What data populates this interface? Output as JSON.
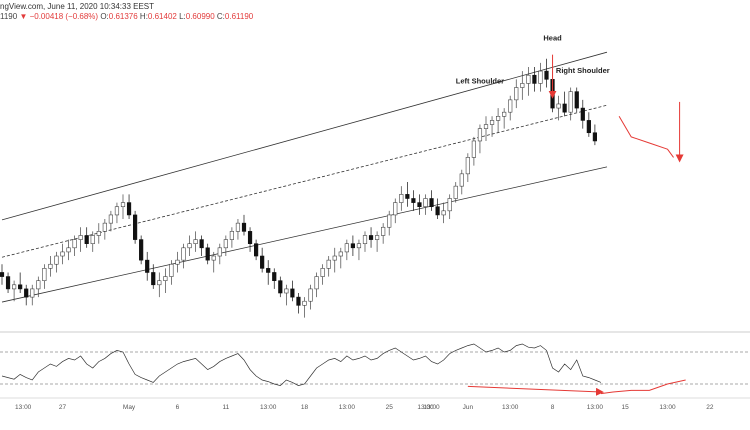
{
  "header": {
    "source": "ngView.com, June 11, 2020 10:34:33 EEST",
    "price": "1190",
    "change": "▼ −0.00418 (−0.68%)",
    "o_label": "O:",
    "o_value": "0.61376",
    "h_label": "H:",
    "h_value": "0.61402",
    "l_label": "L:",
    "l_value": "0.60990",
    "c_label": "C:",
    "c_value": "0.61190"
  },
  "colors": {
    "up": "#444444",
    "down": "#111111",
    "channel": "#333333",
    "projection": "#e53935",
    "rsi": "#333333"
  },
  "chart_data": {
    "type": "candlestick",
    "candles": [
      [
        0.633,
        0.635,
        0.63,
        0.632
      ],
      [
        0.632,
        0.633,
        0.628,
        0.629
      ],
      [
        0.629,
        0.631,
        0.626,
        0.63
      ],
      [
        0.63,
        0.633,
        0.628,
        0.629
      ],
      [
        0.629,
        0.63,
        0.625,
        0.627
      ],
      [
        0.627,
        0.63,
        0.625,
        0.629
      ],
      [
        0.629,
        0.632,
        0.627,
        0.631
      ],
      [
        0.631,
        0.635,
        0.629,
        0.634
      ],
      [
        0.634,
        0.637,
        0.632,
        0.635
      ],
      [
        0.635,
        0.638,
        0.633,
        0.637
      ],
      [
        0.637,
        0.64,
        0.635,
        0.638
      ],
      [
        0.638,
        0.641,
        0.636,
        0.639
      ],
      [
        0.639,
        0.642,
        0.637,
        0.641
      ],
      [
        0.641,
        0.644,
        0.638,
        0.642
      ],
      [
        0.642,
        0.644,
        0.639,
        0.64
      ],
      [
        0.64,
        0.643,
        0.638,
        0.642
      ],
      [
        0.642,
        0.645,
        0.64,
        0.643
      ],
      [
        0.643,
        0.646,
        0.641,
        0.645
      ],
      [
        0.645,
        0.648,
        0.643,
        0.647
      ],
      [
        0.647,
        0.65,
        0.645,
        0.649
      ],
      [
        0.649,
        0.652,
        0.646,
        0.65
      ],
      [
        0.65,
        0.652,
        0.646,
        0.647
      ],
      [
        0.647,
        0.648,
        0.64,
        0.641
      ],
      [
        0.641,
        0.642,
        0.635,
        0.636
      ],
      [
        0.636,
        0.638,
        0.631,
        0.633
      ],
      [
        0.633,
        0.635,
        0.629,
        0.63
      ],
      [
        0.63,
        0.633,
        0.627,
        0.631
      ],
      [
        0.631,
        0.634,
        0.628,
        0.632
      ],
      [
        0.632,
        0.636,
        0.63,
        0.635
      ],
      [
        0.635,
        0.638,
        0.633,
        0.636
      ],
      [
        0.636,
        0.64,
        0.634,
        0.639
      ],
      [
        0.639,
        0.642,
        0.637,
        0.64
      ],
      [
        0.64,
        0.643,
        0.638,
        0.641
      ],
      [
        0.641,
        0.642,
        0.637,
        0.639
      ],
      [
        0.639,
        0.64,
        0.635,
        0.636
      ],
      [
        0.636,
        0.638,
        0.633,
        0.637
      ],
      [
        0.637,
        0.64,
        0.635,
        0.639
      ],
      [
        0.639,
        0.642,
        0.637,
        0.641
      ],
      [
        0.641,
        0.644,
        0.639,
        0.643
      ],
      [
        0.643,
        0.646,
        0.641,
        0.645
      ],
      [
        0.645,
        0.647,
        0.642,
        0.643
      ],
      [
        0.643,
        0.644,
        0.638,
        0.64
      ],
      [
        0.64,
        0.641,
        0.636,
        0.637
      ],
      [
        0.637,
        0.639,
        0.633,
        0.634
      ],
      [
        0.634,
        0.636,
        0.63,
        0.633
      ],
      [
        0.633,
        0.634,
        0.629,
        0.631
      ],
      [
        0.631,
        0.632,
        0.627,
        0.628
      ],
      [
        0.628,
        0.63,
        0.625,
        0.629
      ],
      [
        0.629,
        0.631,
        0.626,
        0.627
      ],
      [
        0.627,
        0.628,
        0.623,
        0.625
      ],
      [
        0.625,
        0.627,
        0.622,
        0.626
      ],
      [
        0.626,
        0.63,
        0.624,
        0.629
      ],
      [
        0.629,
        0.633,
        0.627,
        0.632
      ],
      [
        0.632,
        0.635,
        0.63,
        0.634
      ],
      [
        0.634,
        0.637,
        0.632,
        0.636
      ],
      [
        0.636,
        0.639,
        0.633,
        0.637
      ],
      [
        0.637,
        0.639,
        0.634,
        0.638
      ],
      [
        0.638,
        0.641,
        0.636,
        0.64
      ],
      [
        0.64,
        0.642,
        0.637,
        0.639
      ],
      [
        0.639,
        0.641,
        0.636,
        0.64
      ],
      [
        0.64,
        0.643,
        0.638,
        0.642
      ],
      [
        0.642,
        0.644,
        0.639,
        0.641
      ],
      [
        0.641,
        0.643,
        0.638,
        0.642
      ],
      [
        0.642,
        0.645,
        0.64,
        0.644
      ],
      [
        0.644,
        0.648,
        0.642,
        0.647
      ],
      [
        0.647,
        0.651,
        0.645,
        0.65
      ],
      [
        0.65,
        0.654,
        0.648,
        0.652
      ],
      [
        0.652,
        0.655,
        0.649,
        0.651
      ],
      [
        0.651,
        0.653,
        0.648,
        0.65
      ],
      [
        0.65,
        0.652,
        0.647,
        0.649
      ],
      [
        0.649,
        0.652,
        0.647,
        0.651
      ],
      [
        0.651,
        0.653,
        0.648,
        0.649
      ],
      [
        0.649,
        0.651,
        0.646,
        0.647
      ],
      [
        0.647,
        0.65,
        0.645,
        0.648
      ],
      [
        0.648,
        0.652,
        0.646,
        0.651
      ],
      [
        0.651,
        0.655,
        0.65,
        0.654
      ],
      [
        0.654,
        0.658,
        0.652,
        0.657
      ],
      [
        0.657,
        0.662,
        0.655,
        0.661
      ],
      [
        0.661,
        0.666,
        0.659,
        0.665
      ],
      [
        0.665,
        0.669,
        0.662,
        0.668
      ],
      [
        0.668,
        0.671,
        0.665,
        0.669
      ],
      [
        0.669,
        0.671,
        0.666,
        0.67
      ],
      [
        0.67,
        0.673,
        0.667,
        0.671
      ],
      [
        0.671,
        0.673,
        0.668,
        0.672
      ],
      [
        0.672,
        0.676,
        0.67,
        0.675
      ],
      [
        0.675,
        0.68,
        0.673,
        0.678
      ],
      [
        0.678,
        0.682,
        0.675,
        0.679
      ],
      [
        0.679,
        0.683,
        0.676,
        0.681
      ],
      [
        0.681,
        0.683,
        0.677,
        0.679
      ],
      [
        0.679,
        0.684,
        0.677,
        0.682
      ],
      [
        0.682,
        0.685,
        0.678,
        0.68
      ],
      [
        0.68,
        0.682,
        0.672,
        0.673
      ],
      [
        0.673,
        0.676,
        0.67,
        0.674
      ],
      [
        0.674,
        0.677,
        0.671,
        0.672
      ],
      [
        0.672,
        0.678,
        0.67,
        0.677
      ],
      [
        0.677,
        0.678,
        0.672,
        0.673
      ],
      [
        0.673,
        0.675,
        0.668,
        0.67
      ],
      [
        0.67,
        0.672,
        0.666,
        0.667
      ],
      [
        0.667,
        0.669,
        0.664,
        0.665
      ]
    ],
    "channel": {
      "upper": [
        [
          0,
          0.6458
        ],
        [
          100,
          0.6866
        ]
      ],
      "middle": [
        [
          0,
          0.6367
        ],
        [
          100,
          0.6737
        ]
      ],
      "lower": [
        [
          0,
          0.6258
        ],
        [
          100,
          0.6587
        ]
      ]
    },
    "annotations": [
      {
        "text": "Head",
        "at": [
          91,
          0.6895
        ]
      },
      {
        "text": "Left Shoulder",
        "at": [
          79,
          0.679
        ]
      },
      {
        "text": "Right Shoulder",
        "at": [
          96,
          0.6815
        ]
      }
    ],
    "projection": {
      "vertical_arrows": [
        {
          "x": 91,
          "from": 0.686,
          "to": 0.676
        },
        {
          "x": 112,
          "from": 0.6745,
          "to": 0.6605
        }
      ],
      "curve": [
        [
          102,
          0.671
        ],
        [
          104,
          0.666
        ],
        [
          107,
          0.6645
        ],
        [
          110,
          0.663
        ],
        [
          111,
          0.661
        ]
      ]
    },
    "ylim": [
      0.619,
      0.692
    ],
    "x_ticks": [
      {
        "label": "13:00",
        "x": 3.5
      },
      {
        "label": "27",
        "x": 10
      },
      {
        "label": "May",
        "x": 21
      },
      {
        "label": "6",
        "x": 29
      },
      {
        "label": "11",
        "x": 37
      },
      {
        "label": "13:00",
        "x": 44
      },
      {
        "label": "18",
        "x": 50
      },
      {
        "label": "13:00",
        "x": 57
      },
      {
        "label": "25",
        "x": 64
      },
      {
        "label": "13:00",
        "x": 70
      },
      {
        "label": "13:00",
        "x": 71
      },
      {
        "label": "Jun",
        "x": 77
      },
      {
        "label": "13:00",
        "x": 84
      },
      {
        "label": "8",
        "x": 91
      },
      {
        "label": "13:00",
        "x": 98
      },
      {
        "label": "15",
        "x": 103
      },
      {
        "label": "13:00",
        "x": 110
      },
      {
        "label": "22",
        "x": 117
      }
    ],
    "rsi": {
      "values": [
        40,
        38,
        36,
        42,
        38,
        35,
        45,
        50,
        55,
        52,
        58,
        62,
        60,
        65,
        55,
        50,
        58,
        62,
        68,
        72,
        70,
        55,
        42,
        38,
        35,
        32,
        40,
        45,
        50,
        55,
        58,
        60,
        62,
        55,
        48,
        52,
        58,
        62,
        65,
        68,
        60,
        48,
        40,
        35,
        33,
        30,
        28,
        35,
        32,
        28,
        30,
        40,
        50,
        55,
        60,
        62,
        58,
        65,
        60,
        62,
        65,
        60,
        62,
        68,
        72,
        75,
        70,
        65,
        60,
        62,
        65,
        58,
        55,
        60,
        68,
        72,
        75,
        78,
        80,
        75,
        70,
        72,
        75,
        70,
        72,
        78,
        80,
        76,
        75,
        78,
        72,
        50,
        45,
        55,
        48,
        60,
        40,
        38,
        35,
        32
      ],
      "levels": [
        70,
        30
      ],
      "divergence_arrow": [
        [
          77,
          27
        ],
        [
          99,
          20
        ]
      ],
      "projection": [
        [
          99,
          18
        ],
        [
          101,
          20
        ],
        [
          104,
          22
        ],
        [
          107,
          22
        ],
        [
          110,
          30
        ],
        [
          113,
          35
        ]
      ],
      "ylim": [
        15,
        90
      ]
    }
  }
}
